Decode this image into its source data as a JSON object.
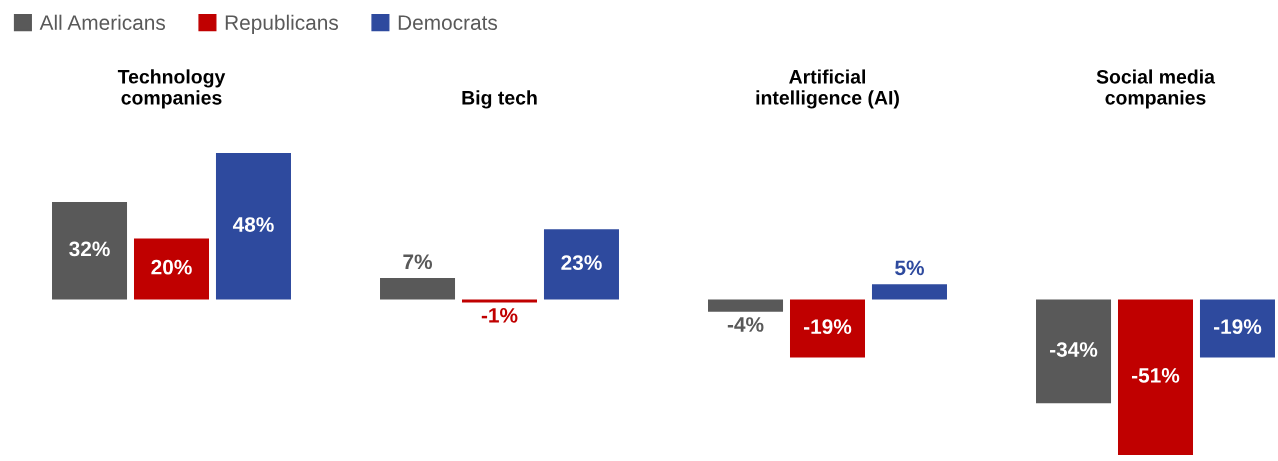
{
  "chart_data": [
    {
      "type": "bar",
      "title": "Technology\ncompanies",
      "categories": [
        null
      ],
      "legend": "top",
      "series": [
        {
          "name": "All Americans",
          "color": "#595959",
          "values": [
            32
          ],
          "value_labels": [
            "32%"
          ]
        },
        {
          "name": "Republicans",
          "color": "#c00000",
          "values": [
            20
          ],
          "value_labels": [
            "20%"
          ]
        },
        {
          "name": "Democrats",
          "color": "#2e4a9e",
          "values": [
            48
          ],
          "value_labels": [
            "48%"
          ]
        }
      ]
    },
    {
      "type": "bar",
      "title": "Big tech",
      "categories": [
        null
      ],
      "series": [
        {
          "color": "#595959",
          "values": [
            7
          ],
          "value_labels": [
            "7%"
          ]
        },
        {
          "color": "#c00000",
          "values": [
            -1
          ],
          "value_labels": [
            "-1%"
          ]
        },
        {
          "color": "#2e4a9e",
          "values": [
            23
          ],
          "value_labels": [
            "23%"
          ]
        }
      ]
    },
    {
      "type": "bar",
      "title": "Artificial\nintelligence (AI)",
      "categories": [
        null
      ],
      "series": [
        {
          "color": "#595959",
          "values": [
            -4
          ],
          "value_labels": [
            "-4%"
          ]
        },
        {
          "color": "#c00000",
          "values": [
            -19
          ],
          "value_labels": [
            "-19%"
          ]
        },
        {
          "color": "#2e4a9e",
          "values": [
            5
          ],
          "value_labels": [
            "5%"
          ]
        }
      ]
    },
    {
      "type": "bar",
      "title": "Social media\ncompanies",
      "categories": [
        null
      ],
      "series": [
        {
          "color": "#595959",
          "values": [
            -34
          ],
          "value_labels": [
            "-34%"
          ]
        },
        {
          "color": "#c00000",
          "values": [
            -51
          ],
          "value_labels": [
            "-51%"
          ]
        },
        {
          "color": "#2e4a9e",
          "values": [
            -19
          ],
          "value_labels": [
            "-19%"
          ]
        }
      ]
    }
  ]
}
